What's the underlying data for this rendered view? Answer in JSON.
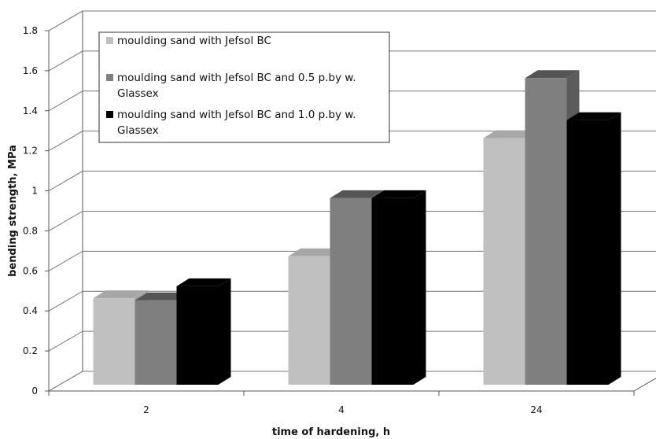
{
  "chart_data": {
    "type": "bar",
    "style": "3d-column",
    "categories": [
      "2",
      "4",
      "24"
    ],
    "series": [
      {
        "name": "moulding sand with Jefsol BC",
        "name_lines": [
          "moulding sand with Jefsol BC"
        ],
        "color": "#c0c0c0",
        "top_color": "#a8a8a8",
        "side_color": "#a0a0a0",
        "values": [
          0.53,
          0.74,
          1.33
        ]
      },
      {
        "name": "moulding sand with Jefsol BC and 0.5 p.by w. Glassex",
        "name_lines": [
          "moulding sand with Jefsol BC and 0.5 p.by w.",
          "Glassex"
        ],
        "color": "#7f7f7f",
        "top_color": "#555555",
        "side_color": "#5c5c5c",
        "values": [
          0.52,
          1.03,
          1.63
        ]
      },
      {
        "name": "moulding sand with Jefsol BC and 1.0 p.by w. Glassex",
        "name_lines": [
          "moulding sand with Jefsol BC and 1.0 p.by w.",
          "Glassex"
        ],
        "color": "#000000",
        "top_color": "#000000",
        "side_color": "#000000",
        "values": [
          0.59,
          1.03,
          1.42
        ]
      }
    ],
    "xlabel": "time of hardening, h",
    "ylabel": "bending strength, MPa",
    "ylim": [
      0,
      1.8
    ],
    "yticks": [
      "0",
      "0.2",
      "0.4",
      "0.6",
      "0.8",
      "1",
      "1.2",
      "1.4",
      "1.6",
      "1.8"
    ],
    "grid": true,
    "legend_position": "top-left"
  }
}
